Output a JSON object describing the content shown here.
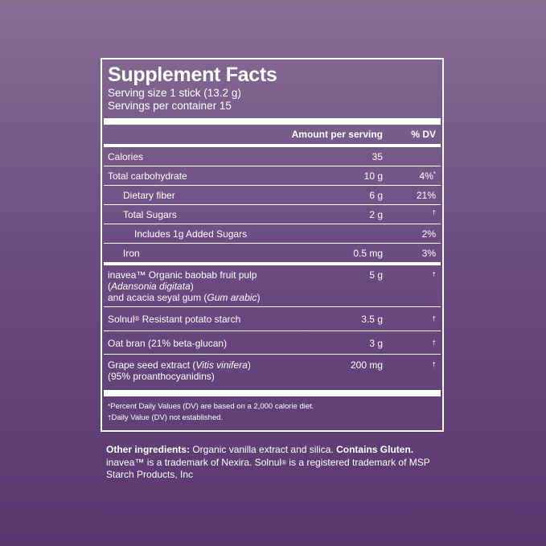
{
  "panel": {
    "title": "Supplement Facts",
    "serving_size": "Serving size 1 stick (13.2 g)",
    "servings_per_container": "Servings per container 15",
    "header_amount": "Amount per serving",
    "header_dv": "% DV"
  },
  "rows": [
    {
      "name": "Calories",
      "amount": "35",
      "dv": ""
    },
    {
      "name": "Total carbohydrate",
      "amount": "10 g",
      "dv": "4%",
      "dv_mark": "*"
    },
    {
      "name": "Dietary fiber",
      "amount": "6 g",
      "dv": "21%"
    },
    {
      "name": "Total Sugars",
      "amount": "2 g",
      "dv": "†"
    },
    {
      "name": "Includes 1g Added Sugars",
      "amount": "",
      "dv": "2%"
    },
    {
      "name": "Iron",
      "amount": "0.5 mg",
      "dv": "3%"
    }
  ],
  "ingredients": [
    {
      "line1_pre": "inavea™ Organic baobab fruit pulp (",
      "line1_italic": "Adansonia digitata",
      "line1_post": ")",
      "line2_pre": "and acacia seyal gum (",
      "line2_italic": "Gum arabic",
      "line2_post": ")",
      "amount": "5 g",
      "dv": "†"
    },
    {
      "name_pre": "Solnul",
      "name_reg": "®",
      "name_post": " Resistant potato starch",
      "amount": "3.5 g",
      "dv": "†"
    },
    {
      "name": "Oat bran (21% beta-glucan)",
      "amount": "3 g",
      "dv": "†"
    },
    {
      "line1_pre": "Grape seed extract (",
      "line1_italic": "Vitis vinifera",
      "line1_post": ")",
      "line2": "(95% proanthocyanidins)",
      "amount": "200 mg",
      "dv": "†"
    }
  ],
  "footnotes": {
    "mark1": "*",
    "note1": "Percent Daily Values (DV) are based on a 2,000 calorie diet.",
    "mark2": "†",
    "note2": "Daily Value (DV) not established."
  },
  "other": {
    "label": "Other ingredients:",
    "text": " Organic vanilla extract and silica. ",
    "gluten": "Contains Gluten.",
    "tm1": "inavea™ is a trademark of Nexira. Solnul",
    "tm_reg": "®",
    "tm2": " is a registered trademark of MSP Starch Products, Inc"
  }
}
